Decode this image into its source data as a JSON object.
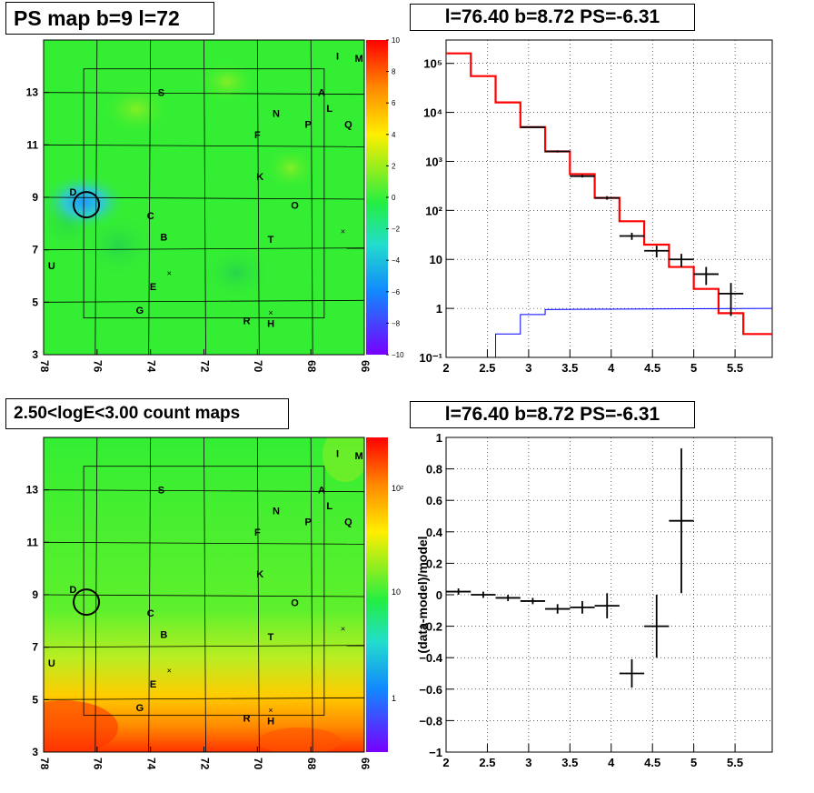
{
  "panels": {
    "map_top_title": "PS map b=9 l=72",
    "spec_top_title": "l=76.40 b=8.72 PS=-6.31",
    "map_bottom_title": "2.50<logE<3.00 count maps",
    "spec_bottom_title": "l=76.40 b=8.72 PS=-6.31"
  },
  "colors": {
    "accent_red": "#ff0000",
    "accent_blue": "#0000ff",
    "map_base": "#33ee33"
  },
  "chart_data": [
    {
      "type": "heatmap",
      "title": "PS map b=9 l=72",
      "xlim": [
        78,
        66
      ],
      "ylim": [
        3,
        15
      ],
      "x_ticks": [
        "78",
        "76",
        "74",
        "72",
        "70",
        "68",
        "66"
      ],
      "y_ticks": [
        "3",
        "5",
        "7",
        "9",
        "11",
        "13"
      ],
      "colorbar": {
        "range": [
          -10,
          10
        ],
        "ticks": [
          "10",
          "8",
          "6",
          "4",
          "2",
          "0",
          "−2",
          "−4",
          "−6",
          "−8",
          "−10"
        ]
      },
      "sources": [
        {
          "label": "I",
          "l": 67.0,
          "b": 14.4
        },
        {
          "label": "M",
          "l": 66.2,
          "b": 14.3
        },
        {
          "label": "S",
          "l": 73.6,
          "b": 13.0
        },
        {
          "label": "A",
          "l": 67.6,
          "b": 13.0
        },
        {
          "label": "L",
          "l": 67.3,
          "b": 12.4
        },
        {
          "label": "N",
          "l": 69.3,
          "b": 12.2
        },
        {
          "label": "P",
          "l": 68.1,
          "b": 11.8
        },
        {
          "label": "Q",
          "l": 66.6,
          "b": 11.8
        },
        {
          "label": "F",
          "l": 70.0,
          "b": 11.4
        },
        {
          "label": "K",
          "l": 69.9,
          "b": 9.8
        },
        {
          "label": "D",
          "l": 76.9,
          "b": 9.2
        },
        {
          "label": "O",
          "l": 68.6,
          "b": 8.7
        },
        {
          "label": "C",
          "l": 74.0,
          "b": 8.3
        },
        {
          "label": "B",
          "l": 73.5,
          "b": 7.5
        },
        {
          "label": "T",
          "l": 69.5,
          "b": 7.4
        },
        {
          "label": "U",
          "l": 77.7,
          "b": 6.4
        },
        {
          "label": "E",
          "l": 73.9,
          "b": 5.6
        },
        {
          "label": "G",
          "l": 74.4,
          "b": 4.7
        },
        {
          "label": "R",
          "l": 70.4,
          "b": 4.3
        },
        {
          "label": "H",
          "l": 69.5,
          "b": 4.2
        }
      ],
      "crosses": [
        {
          "l": 66.8,
          "b": 7.7
        },
        {
          "l": 73.3,
          "b": 6.1
        },
        {
          "l": 69.5,
          "b": 4.6
        }
      ],
      "circle": {
        "l": 76.4,
        "b": 8.72
      }
    },
    {
      "type": "line",
      "title": "l=76.40 b=8.72 PS=-6.31",
      "xlim": [
        2,
        5.95
      ],
      "ylim": [
        0.1,
        300000
      ],
      "yscale": "log",
      "x_ticks": [
        "2",
        "2.5",
        "3",
        "3.5",
        "4",
        "4.5",
        "5",
        "5.5"
      ],
      "y_ticks": [
        "10⁻¹",
        "1",
        "10",
        "10²",
        "10³",
        "10⁴",
        "10⁵"
      ],
      "grid": true,
      "model_red": [
        [
          2.0,
          160000
        ],
        [
          2.3,
          55000
        ],
        [
          2.6,
          16000
        ],
        [
          2.9,
          5000
        ],
        [
          3.2,
          1600
        ],
        [
          3.5,
          550
        ],
        [
          3.8,
          180
        ],
        [
          4.1,
          60
        ],
        [
          4.4,
          20
        ],
        [
          4.7,
          7
        ],
        [
          5.0,
          2.5
        ],
        [
          5.3,
          0.8
        ],
        [
          5.6,
          0.3
        ],
        [
          5.95,
          0.3
        ]
      ],
      "model_blue": [
        [
          2.6,
          0.1
        ],
        [
          2.6,
          0.3
        ],
        [
          2.9,
          0.3
        ],
        [
          2.9,
          0.75
        ],
        [
          3.2,
          0.75
        ],
        [
          3.2,
          0.95
        ],
        [
          5.95,
          1.0
        ]
      ],
      "data_points": [
        {
          "x": 3.05,
          "y": 5000,
          "xerr": 0.15,
          "lo": 4850,
          "hi": 5150
        },
        {
          "x": 3.35,
          "y": 1600,
          "xerr": 0.15,
          "lo": 1520,
          "hi": 1680
        },
        {
          "x": 3.65,
          "y": 500,
          "xerr": 0.15,
          "lo": 470,
          "hi": 530
        },
        {
          "x": 3.95,
          "y": 180,
          "xerr": 0.15,
          "lo": 165,
          "hi": 195
        },
        {
          "x": 4.25,
          "y": 30,
          "xerr": 0.15,
          "lo": 25,
          "hi": 35
        },
        {
          "x": 4.55,
          "y": 15,
          "xerr": 0.15,
          "lo": 11,
          "hi": 19
        },
        {
          "x": 4.85,
          "y": 10,
          "xerr": 0.15,
          "lo": 7,
          "hi": 13
        },
        {
          "x": 5.15,
          "y": 5,
          "xerr": 0.15,
          "lo": 3,
          "hi": 7
        },
        {
          "x": 5.45,
          "y": 2,
          "xerr": 0.15,
          "lo": 0.7,
          "hi": 3.3
        }
      ]
    },
    {
      "type": "heatmap",
      "title": "2.50<logE<3.00 count maps",
      "xlim": [
        78,
        66
      ],
      "ylim": [
        3,
        15
      ],
      "x_ticks": [
        "78",
        "76",
        "74",
        "72",
        "70",
        "68",
        "66"
      ],
      "y_ticks": [
        "3",
        "5",
        "7",
        "9",
        "11",
        "13"
      ],
      "colorbar": {
        "scale": "log",
        "ticks": [
          "10²",
          "10",
          "1"
        ]
      },
      "sources": [
        {
          "label": "I",
          "l": 67.0,
          "b": 14.4
        },
        {
          "label": "M",
          "l": 66.2,
          "b": 14.3
        },
        {
          "label": "S",
          "l": 73.6,
          "b": 13.0
        },
        {
          "label": "A",
          "l": 67.6,
          "b": 13.0
        },
        {
          "label": "L",
          "l": 67.3,
          "b": 12.4
        },
        {
          "label": "N",
          "l": 69.3,
          "b": 12.2
        },
        {
          "label": "P",
          "l": 68.1,
          "b": 11.8
        },
        {
          "label": "Q",
          "l": 66.6,
          "b": 11.8
        },
        {
          "label": "F",
          "l": 70.0,
          "b": 11.4
        },
        {
          "label": "K",
          "l": 69.9,
          "b": 9.8
        },
        {
          "label": "D",
          "l": 76.9,
          "b": 9.2
        },
        {
          "label": "O",
          "l": 68.6,
          "b": 8.7
        },
        {
          "label": "C",
          "l": 74.0,
          "b": 8.3
        },
        {
          "label": "B",
          "l": 73.5,
          "b": 7.5
        },
        {
          "label": "T",
          "l": 69.5,
          "b": 7.4
        },
        {
          "label": "U",
          "l": 77.7,
          "b": 6.4
        },
        {
          "label": "E",
          "l": 73.9,
          "b": 5.6
        },
        {
          "label": "G",
          "l": 74.4,
          "b": 4.7
        },
        {
          "label": "R",
          "l": 70.4,
          "b": 4.3
        },
        {
          "label": "H",
          "l": 69.5,
          "b": 4.2
        }
      ],
      "crosses": [
        {
          "l": 66.8,
          "b": 7.7
        },
        {
          "l": 73.3,
          "b": 6.1
        },
        {
          "l": 69.5,
          "b": 4.6
        }
      ],
      "circle": {
        "l": 76.4,
        "b": 8.72
      }
    },
    {
      "type": "scatter",
      "title": "l=76.40 b=8.72 PS=-6.31",
      "ylabel": "(data-model)/model",
      "xlim": [
        2,
        5.95
      ],
      "ylim": [
        -1,
        1
      ],
      "x_ticks": [
        "2",
        "2.5",
        "3",
        "3.5",
        "4",
        "4.5",
        "5",
        "5.5"
      ],
      "y_ticks": [
        "−1",
        "−0.8",
        "−0.6",
        "−0.4",
        "−0.2",
        "0",
        "0.2",
        "0.4",
        "0.6",
        "0.8",
        "1"
      ],
      "grid": true,
      "points": [
        {
          "x": 2.15,
          "y": 0.02,
          "xerr": 0.15,
          "err": 0.02
        },
        {
          "x": 2.45,
          "y": 0.0,
          "xerr": 0.15,
          "err": 0.02
        },
        {
          "x": 2.75,
          "y": -0.02,
          "xerr": 0.15,
          "err": 0.02
        },
        {
          "x": 3.05,
          "y": -0.04,
          "xerr": 0.15,
          "err": 0.02
        },
        {
          "x": 3.35,
          "y": -0.09,
          "xerr": 0.15,
          "err": 0.03
        },
        {
          "x": 3.65,
          "y": -0.08,
          "xerr": 0.15,
          "err": 0.04
        },
        {
          "x": 3.95,
          "y": -0.07,
          "xerr": 0.15,
          "err": 0.08
        },
        {
          "x": 4.25,
          "y": -0.5,
          "xerr": 0.15,
          "err": 0.09
        },
        {
          "x": 4.55,
          "y": -0.2,
          "xerr": 0.15,
          "err": 0.2
        },
        {
          "x": 4.85,
          "y": 0.47,
          "xerr": 0.15,
          "err": 0.46
        }
      ]
    }
  ]
}
